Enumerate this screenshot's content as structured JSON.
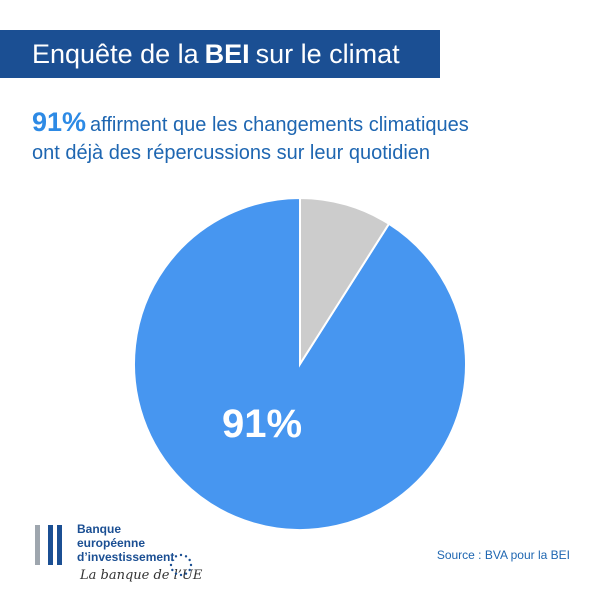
{
  "header": {
    "title_before": "Enquête de la",
    "title_bold": "BEI",
    "title_after": "sur le climat"
  },
  "headline": {
    "percent": "91%",
    "line1": "affirment que les changements climatiques",
    "line2": "ont déjà des répercussions sur leur quotidien"
  },
  "chart_data": {
    "type": "pie",
    "slices": [
      {
        "label": "91%",
        "value": 91,
        "color": "#4796f0"
      },
      {
        "label": "",
        "value": 9,
        "color": "#cccccc"
      }
    ],
    "title": "",
    "legend": "none"
  },
  "source": "Source : BVA pour la BEI",
  "logo": {
    "line1": "Banque",
    "line2": "européenne",
    "line3": "d’investissement",
    "tagline": "La banque de l’UE",
    "bar_colors": [
      "#9ea6ae",
      "#1b4f93",
      "#1b4f93"
    ]
  },
  "colors": {
    "banner": "#1b4f93",
    "headline_text": "#1e66b1",
    "headline_percent": "#2d8ae5",
    "pie_main": "#4796f0",
    "pie_rest": "#cccccc"
  },
  "icons": {
    "logo": "eib-bars-logo",
    "stars": "eu-stars-icon"
  }
}
